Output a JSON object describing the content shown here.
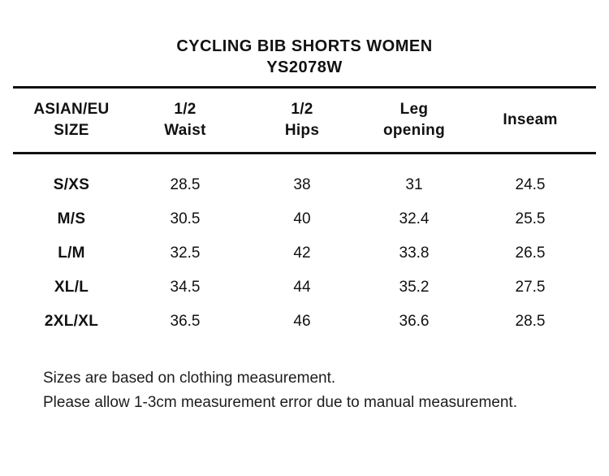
{
  "title": {
    "line1": "CYCLING BIB SHORTS WOMEN",
    "line2": "YS2078W"
  },
  "table": {
    "headers": {
      "size": {
        "line1": "ASIAN/EU",
        "line2": "SIZE"
      },
      "half_waist": {
        "line1": "1/2",
        "line2": "Waist"
      },
      "half_hips": {
        "line1": "1/2",
        "line2": "Hips"
      },
      "leg_opening": {
        "line1": "Leg",
        "line2": "opening"
      },
      "inseam": {
        "line1": "Inseam"
      }
    },
    "rows": [
      {
        "size": "S/XS",
        "half_waist": "28.5",
        "half_hips": "38",
        "leg_opening": "31",
        "inseam": "24.5"
      },
      {
        "size": "M/S",
        "half_waist": "30.5",
        "half_hips": "40",
        "leg_opening": "32.4",
        "inseam": "25.5"
      },
      {
        "size": "L/M",
        "half_waist": "32.5",
        "half_hips": "42",
        "leg_opening": "33.8",
        "inseam": "26.5"
      },
      {
        "size": "XL/L",
        "half_waist": "34.5",
        "half_hips": "44",
        "leg_opening": "35.2",
        "inseam": "27.5"
      },
      {
        "size": "2XL/XL",
        "half_waist": "36.5",
        "half_hips": "46",
        "leg_opening": "36.6",
        "inseam": "28.5"
      }
    ]
  },
  "notes": {
    "line1": "Sizes are based on clothing measurement.",
    "line2": "Please allow 1-3cm measurement error due to manual measurement."
  },
  "colors": {
    "text": "#111111",
    "background": "#ffffff",
    "rule": "#111111"
  }
}
